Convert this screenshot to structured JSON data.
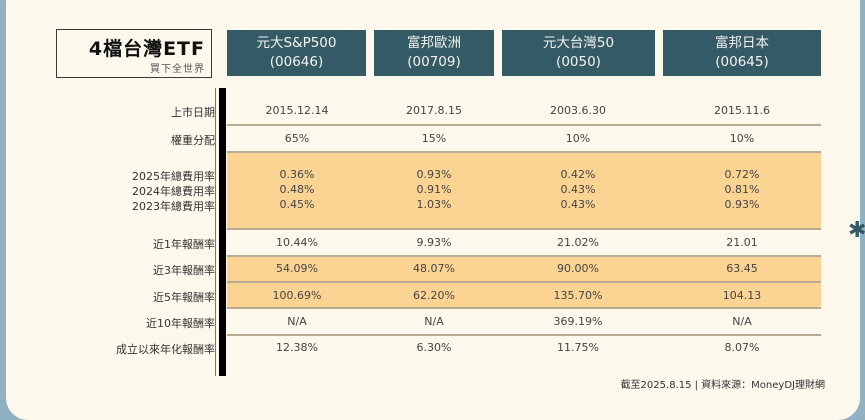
{
  "title": "4檔台灣ETF",
  "subtitle": "買下全世界",
  "columns": [
    {
      "name": "元大S&P500",
      "code": "(00646)"
    },
    {
      "name": "富邦歐洲",
      "code": "(00709)"
    },
    {
      "name": "元大台灣50",
      "code": "(0050)"
    },
    {
      "name": "富邦日本",
      "code": "(00645)"
    }
  ],
  "rows": {
    "listing_date": {
      "label": "上市日期",
      "values": [
        "2015.12.14",
        "2017.8.15",
        "2003.6.30",
        "2015.11.6"
      ]
    },
    "weight": {
      "label": "權重分配",
      "values": [
        "65%",
        "15%",
        "10%",
        "10%"
      ]
    },
    "fee2025": {
      "label": "2025年總費用率",
      "values": [
        "0.36%",
        "0.93%",
        "0.42%",
        "0.72%"
      ]
    },
    "fee2024": {
      "label": "2024年總費用率",
      "values": [
        "0.48%",
        "0.91%",
        "0.43%",
        "0.81%"
      ]
    },
    "fee2023": {
      "label": "2023年總費用率",
      "values": [
        "0.45%",
        "1.03%",
        "0.43%",
        "0.93%"
      ]
    },
    "ret1": {
      "label": "近1年報酬率",
      "values": [
        "10.44%",
        "9.93%",
        "21.02%",
        "21.01"
      ]
    },
    "ret3": {
      "label": "近3年報酬率",
      "values": [
        "54.09%",
        "48.07%",
        "90.00%",
        "63.45"
      ]
    },
    "ret5": {
      "label": "近5年報酬率",
      "values": [
        "100.69%",
        "62.20%",
        "135.70%",
        "104.13"
      ]
    },
    "ret10": {
      "label": "近10年報酬率",
      "values": [
        "N/A",
        "N/A",
        "369.19%",
        "N/A"
      ]
    },
    "annual": {
      "label": "成立以來年化報酬率",
      "values": [
        "12.38%",
        "6.30%",
        "11.75%",
        "8.07%"
      ]
    }
  },
  "footer": "截至2025.8.15 | 資料來源：MoneyDJ理財網",
  "colors": {
    "header": "#345a65",
    "highlight": "#fbd494",
    "background": "#fdf8ec"
  }
}
